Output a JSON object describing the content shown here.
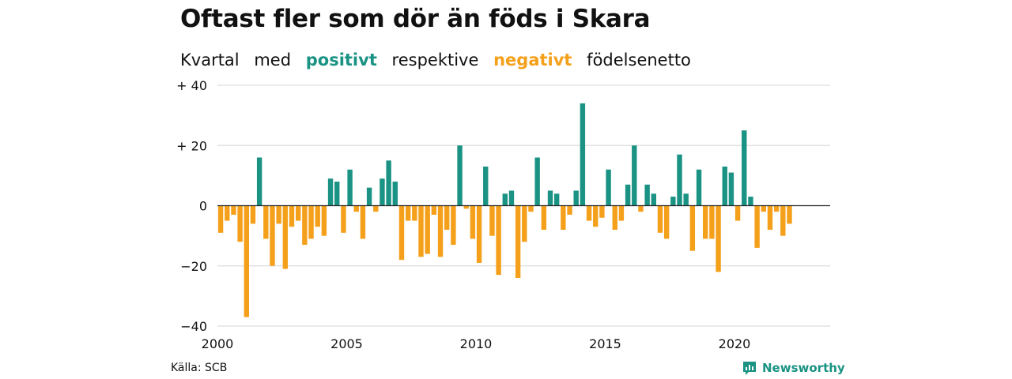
{
  "title": "Oftast fler som dör än föds i Skara",
  "subtitle": {
    "w1": "Kvartal",
    "w2": "med",
    "positive_word": "positivt",
    "w3": "respektive",
    "negative_word": "negativt",
    "w4": "födelsenetto"
  },
  "source": "Källa: SCB",
  "brand": "Newsworthy",
  "colors": {
    "positive": "#1a9384",
    "negative": "#f5a01a",
    "grid": "#dddddd",
    "axis": "#222222"
  },
  "chart_data": {
    "type": "bar",
    "title": "Oftast fler som dör än föds i Skara",
    "xlabel": "",
    "ylabel": "",
    "ylim": [
      -40,
      40
    ],
    "yticks": [
      40,
      20,
      0,
      -20,
      -40
    ],
    "ytick_labels": [
      "+ 40",
      "+ 20",
      "0",
      "−20",
      "−40"
    ],
    "xticks": [
      2000,
      2005,
      2010,
      2015,
      2020
    ],
    "xtick_labels": [
      "2000",
      "2005",
      "2010",
      "2015",
      "2020"
    ],
    "x_start": 2000,
    "periods_per_year": 4,
    "grid": true,
    "values": [
      -9,
      -5,
      -3,
      -12,
      -37,
      -6,
      16,
      -11,
      -20,
      -6,
      -21,
      -7,
      -5,
      -13,
      -11,
      -7,
      -10,
      9,
      8,
      -9,
      12,
      -2,
      -11,
      6,
      -2,
      9,
      15,
      8,
      -18,
      -5,
      -5,
      -17,
      -16,
      -3,
      -17,
      -8,
      -13,
      20,
      -1,
      -11,
      -19,
      13,
      -10,
      -23,
      4,
      5,
      -24,
      -12,
      -2,
      16,
      -8,
      5,
      4,
      -8,
      -3,
      5,
      34,
      -5,
      -7,
      -4,
      12,
      -8,
      -5,
      7,
      20,
      -2,
      7,
      4,
      -9,
      -11,
      3,
      17,
      4,
      -15,
      12,
      -11,
      -11,
      -22,
      13,
      11,
      -5,
      25,
      3,
      -14,
      -2,
      -8,
      -2,
      -10,
      -6
    ]
  }
}
